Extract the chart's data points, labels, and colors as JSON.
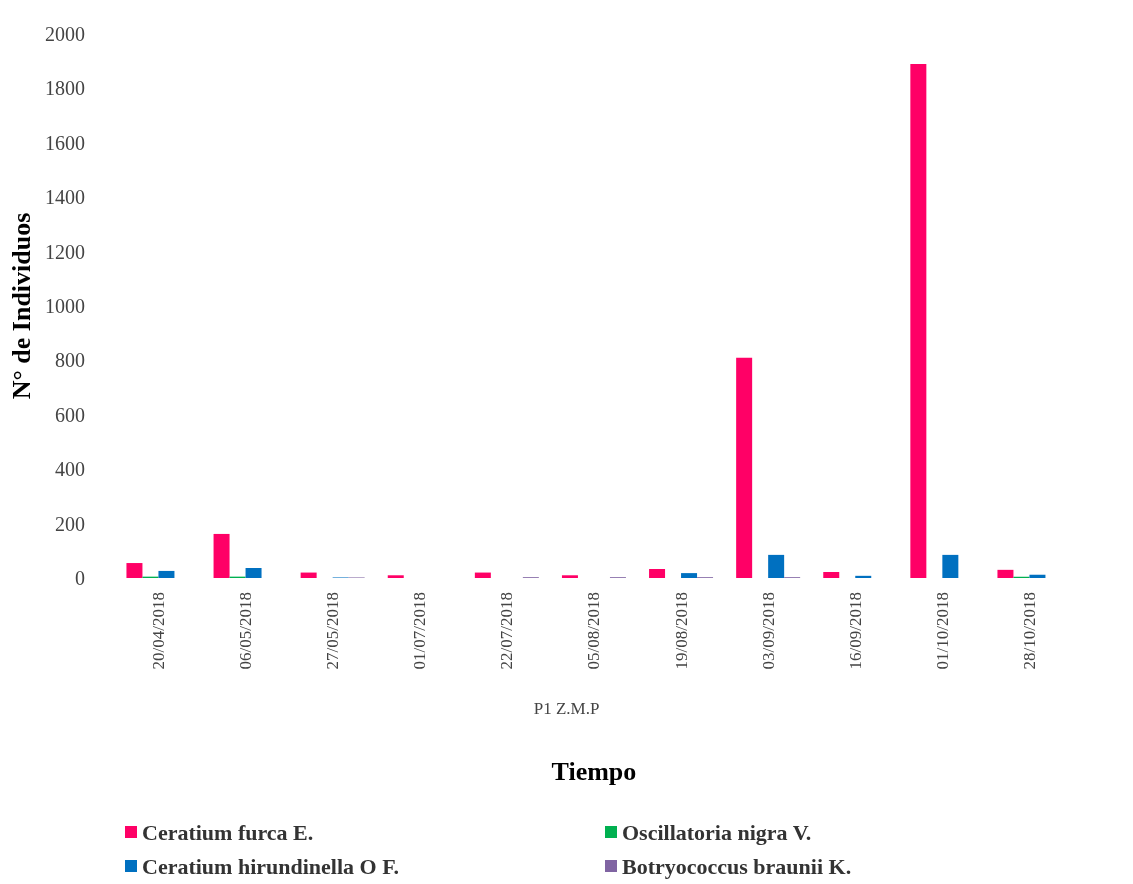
{
  "chart_data": {
    "type": "bar",
    "xlabel": "Tiempo",
    "ylabel": "N° de Individuos",
    "annotations": [
      "P1 Z.M.P"
    ],
    "categories": [
      "20/04/2018",
      "06/05/2018",
      "27/05/2018",
      "01/07/2018",
      "22/07/2018",
      "05/08/2018",
      "19/08/2018",
      "03/09/2018",
      "16/09/2018",
      "01/10/2018",
      "28/10/2018"
    ],
    "series": [
      {
        "name": "Ceratium furca E.",
        "color": "#ff0066",
        "values": [
          55,
          162,
          20,
          10,
          20,
          10,
          33,
          810,
          22,
          1890,
          30
        ]
      },
      {
        "name": "Oscillatoria nigra V.",
        "color": "#00b050",
        "values": [
          5,
          5,
          null,
          null,
          null,
          null,
          null,
          null,
          null,
          null,
          5
        ]
      },
      {
        "name": "Ceratium hirundinella O F.",
        "color": "#0070c0",
        "values": [
          26,
          37,
          2,
          null,
          null,
          null,
          18,
          85,
          8,
          85,
          12
        ]
      },
      {
        "name": "Botryococcus braunii K.",
        "color": "#8064a2",
        "values": [
          null,
          null,
          2,
          null,
          3,
          3,
          3,
          3,
          null,
          null,
          null
        ]
      }
    ],
    "ylim": [
      0,
      2000
    ],
    "yticks": [
      0,
      200,
      400,
      600,
      800,
      1000,
      1200,
      1400,
      1600,
      1800,
      2000
    ],
    "grid": false,
    "legend": "bottom"
  }
}
